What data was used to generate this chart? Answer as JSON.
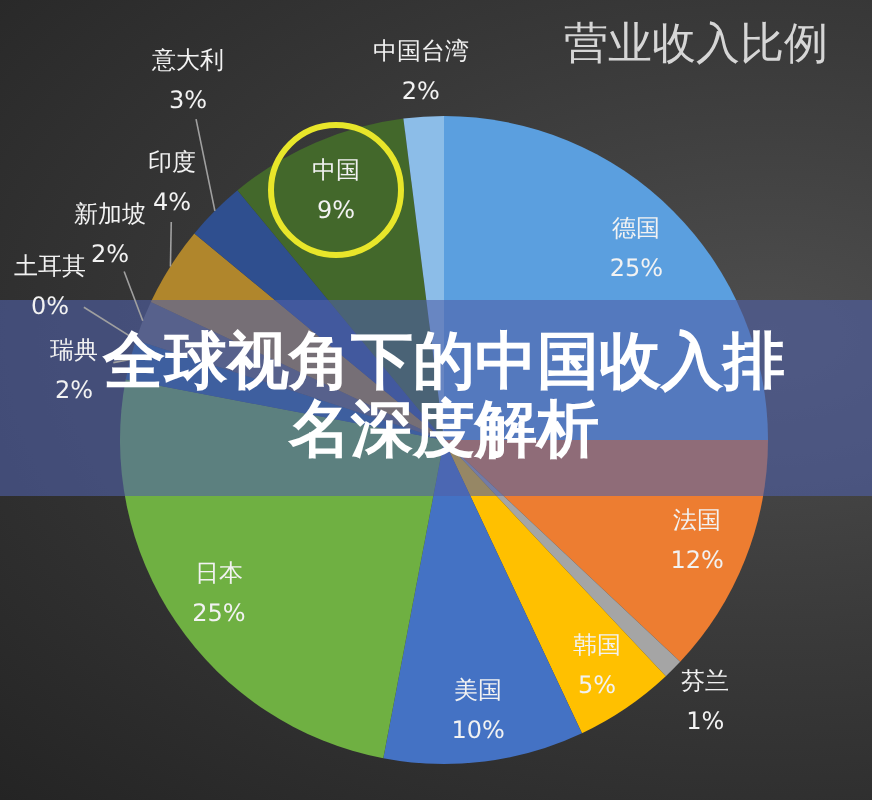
{
  "chart_data": {
    "type": "pie",
    "title": "营业收入比例",
    "subtitle": "全球视角下的中国收入排名深度解析",
    "categories": [
      "德国",
      "法国",
      "芬兰",
      "韩国",
      "美国",
      "日本",
      "瑞典",
      "土耳其",
      "新加坡",
      "印度",
      "意大利",
      "中国",
      "中国台湾"
    ],
    "values": [
      25,
      12,
      1,
      5,
      10,
      25,
      2,
      0,
      2,
      4,
      3,
      9,
      2
    ],
    "value_labels": [
      "25%",
      "12%",
      "1%",
      "5%",
      "10%",
      "25%",
      "2%",
      "0%",
      "2%",
      "4%",
      "3%",
      "9%",
      "2%"
    ],
    "colors": [
      "#5b9fdf",
      "#ed7d31",
      "#a5a5a5",
      "#ffc000",
      "#4472c4",
      "#6fb042",
      "#255e91",
      "#9e480e",
      "#636363",
      "#b0862c",
      "#2f4f8f",
      "#43682b",
      "#8cbde8"
    ]
  }
}
